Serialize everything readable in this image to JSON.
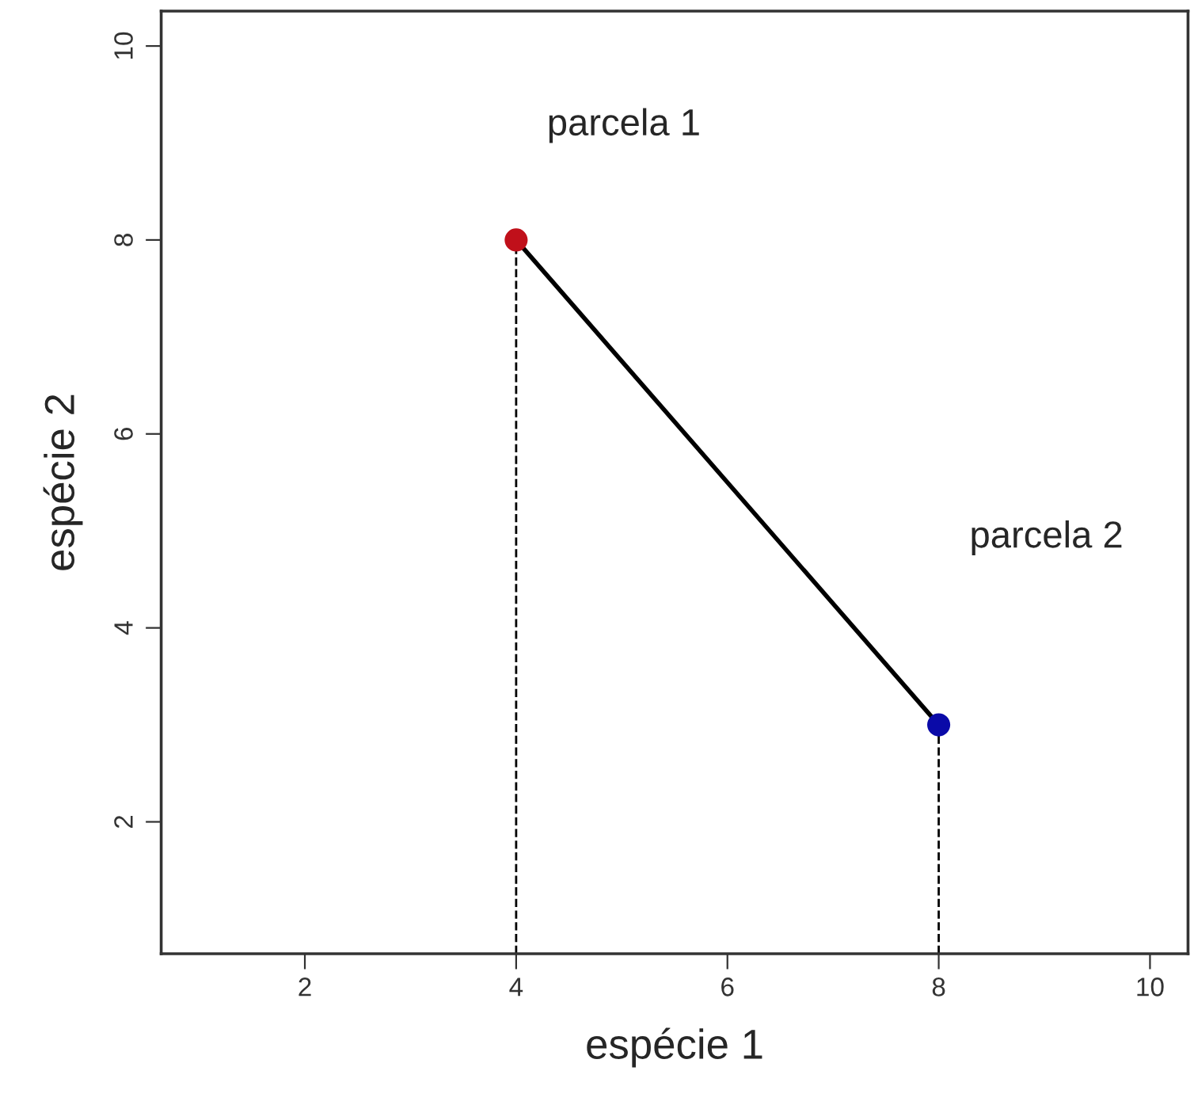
{
  "chart_data": {
    "type": "line",
    "xlabel": "espécie 1",
    "ylabel": "espécie 2",
    "xlim": [
      0.64,
      10.36
    ],
    "ylim": [
      0.64,
      10.36
    ],
    "xticks": [
      2,
      4,
      6,
      8,
      10
    ],
    "yticks": [
      2,
      4,
      6,
      8,
      10
    ],
    "series": [
      {
        "x": [
          4,
          8
        ],
        "values": [
          8,
          3
        ],
        "color": "#000000",
        "colors": [
          "#c0101a",
          "#0a0aa8"
        ],
        "marker": "circle",
        "line_style": "solid"
      }
    ],
    "ref_lines": [
      {
        "axis": "x",
        "value": 4,
        "color": "#000000",
        "line_style": "dashed"
      },
      {
        "axis": "x",
        "value": 8,
        "color": "#000000",
        "line_style": "dashed"
      }
    ],
    "annotations": [
      "parcela 1",
      "parcela 2"
    ]
  }
}
